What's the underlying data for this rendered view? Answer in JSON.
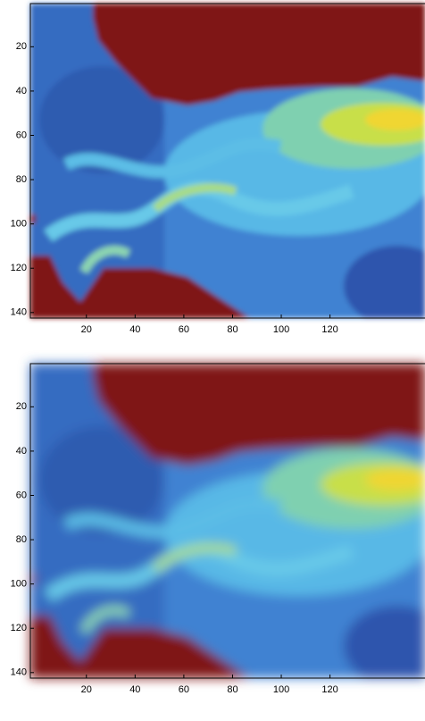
{
  "chart_data": [
    {
      "type": "image",
      "xlim": [
        -3,
        159
      ],
      "ylim": [
        0.5,
        142.5
      ],
      "xticks": [
        20,
        40,
        60,
        80,
        100,
        120
      ],
      "yticks": [
        20,
        40,
        60,
        80,
        100,
        120,
        140
      ]
    },
    {
      "type": "image",
      "xlim": [
        -3,
        159
      ],
      "ylim": [
        0.5,
        142.5
      ],
      "xticks": [
        20,
        40,
        60,
        80,
        100,
        120
      ],
      "yticks": [
        20,
        40,
        60,
        80,
        100,
        120,
        140
      ]
    }
  ]
}
